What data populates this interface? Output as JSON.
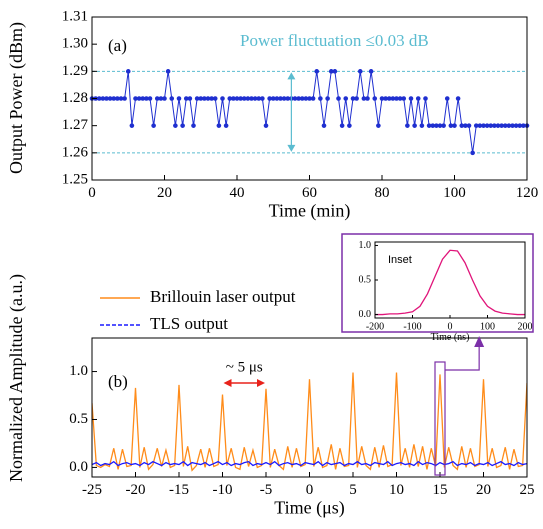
{
  "chart_data": [
    {
      "type": "line",
      "panel_label": "(a)",
      "annotation": "Power fluctuation ≤0.03 dB",
      "x_label": "Time (min)",
      "y_label": "Output Power (dBm)",
      "xlim": [
        0,
        120
      ],
      "xticks": [
        0,
        20,
        40,
        60,
        80,
        100,
        120
      ],
      "ylim": [
        1.25,
        1.31
      ],
      "yticks": [
        1.25,
        1.26,
        1.27,
        1.28,
        1.29,
        {
          "value": 1.3,
          "label": "1.30"
        },
        1.31
      ],
      "ref_lines": [
        1.29,
        1.26
      ],
      "ref_color": "#5bbcd0",
      "markers": true,
      "x": [
        0,
        1,
        2,
        3,
        4,
        5,
        6,
        7,
        8,
        9,
        10,
        11,
        12,
        13,
        14,
        15,
        16,
        17,
        18,
        19,
        20,
        21,
        22,
        23,
        24,
        25,
        26,
        27,
        28,
        29,
        30,
        31,
        32,
        33,
        34,
        35,
        36,
        37,
        38,
        39,
        40,
        41,
        42,
        43,
        44,
        45,
        46,
        47,
        48,
        49,
        50,
        51,
        52,
        53,
        54,
        55,
        56,
        57,
        58,
        59,
        60,
        61,
        62,
        63,
        64,
        65,
        66,
        67,
        68,
        69,
        70,
        71,
        72,
        73,
        74,
        75,
        76,
        77,
        78,
        79,
        80,
        81,
        82,
        83,
        84,
        85,
        86,
        87,
        88,
        89,
        90,
        91,
        92,
        93,
        94,
        95,
        96,
        97,
        98,
        99,
        100,
        101,
        102,
        103,
        104,
        105,
        106,
        107,
        108,
        109,
        110,
        111,
        112,
        113,
        114,
        115,
        116,
        117,
        118,
        119,
        120
      ],
      "series": [
        {
          "color": "#1f2fd0",
          "values": [
            1.28,
            1.28,
            1.28,
            1.28,
            1.28,
            1.28,
            1.28,
            1.28,
            1.28,
            1.28,
            1.29,
            1.27,
            1.28,
            1.28,
            1.28,
            1.28,
            1.28,
            1.27,
            1.28,
            1.28,
            1.28,
            1.29,
            1.28,
            1.27,
            1.28,
            1.27,
            1.28,
            1.28,
            1.27,
            1.28,
            1.28,
            1.28,
            1.28,
            1.28,
            1.28,
            1.27,
            1.28,
            1.27,
            1.28,
            1.28,
            1.28,
            1.28,
            1.28,
            1.28,
            1.28,
            1.28,
            1.28,
            1.28,
            1.27,
            1.28,
            1.28,
            1.28,
            1.28,
            1.28,
            1.28,
            1.28,
            1.28,
            1.28,
            1.28,
            1.28,
            1.28,
            1.28,
            1.29,
            1.28,
            1.27,
            1.28,
            1.29,
            1.29,
            1.28,
            1.27,
            1.28,
            1.27,
            1.28,
            1.28,
            1.29,
            1.28,
            1.28,
            1.29,
            1.28,
            1.27,
            1.28,
            1.28,
            1.28,
            1.28,
            1.28,
            1.28,
            1.28,
            1.27,
            1.28,
            1.27,
            1.28,
            1.27,
            1.28,
            1.27,
            1.27,
            1.27,
            1.27,
            1.27,
            1.28,
            1.27,
            1.27,
            1.28,
            1.27,
            1.27,
            1.27,
            1.26,
            1.27,
            1.27,
            1.27,
            1.27,
            1.27,
            1.27,
            1.27,
            1.27,
            1.27,
            1.27,
            1.27,
            1.27,
            1.27,
            1.27,
            1.27
          ]
        }
      ]
    },
    {
      "type": "line",
      "panel_label": "(b)",
      "annotation": "~ 5 μs",
      "x_label": "Time (μs)",
      "y_label": "Normalized Amplitude (a.u.)",
      "xlim": [
        -25,
        25
      ],
      "xticks": [
        -25,
        -20,
        -15,
        -10,
        -5,
        0,
        5,
        10,
        15,
        20,
        25
      ],
      "ylim": [
        -0.1,
        1.35
      ],
      "yticks": [
        {
          "value": 0,
          "label": "0.0"
        },
        0.5,
        {
          "value": 1,
          "label": "1.0"
        }
      ],
      "markers": false,
      "x": [
        -25,
        -24.5,
        -24,
        -23.5,
        -23,
        -22.5,
        -22,
        -21.5,
        -21,
        -20.5,
        -20,
        -19.5,
        -19,
        -18.5,
        -18,
        -17.5,
        -17,
        -16.5,
        -16,
        -15.5,
        -15,
        -14.5,
        -14,
        -13.5,
        -13,
        -12.5,
        -12,
        -11.5,
        -11,
        -10.5,
        -10,
        -9.5,
        -9,
        -8.5,
        -8,
        -7.5,
        -7,
        -6.5,
        -6,
        -5.5,
        -5,
        -4.5,
        -4,
        -3.5,
        -3,
        -2.5,
        -2,
        -1.5,
        -1,
        -0.5,
        0,
        0.5,
        1,
        1.5,
        2,
        2.5,
        3,
        3.5,
        4,
        4.5,
        5,
        5.5,
        6,
        6.5,
        7,
        7.5,
        8,
        8.5,
        9,
        9.5,
        10,
        10.5,
        11,
        11.5,
        12,
        12.5,
        13,
        13.5,
        14,
        14.5,
        15,
        15.5,
        16,
        16.5,
        17,
        17.5,
        18,
        18.5,
        19,
        19.5,
        20,
        20.5,
        21,
        21.5,
        22,
        22.5,
        23,
        23.5,
        24,
        24.5,
        25
      ],
      "series": [
        {
          "name": "Brillouin laser output",
          "color": "#ff8c1a",
          "values": [
            0.67,
            0.02,
            0,
            0.03,
            0.01,
            0.2,
            -0.02,
            0.19,
            0.01,
            0.02,
            0.83,
            0,
            0.21,
            -0.02,
            0.03,
            0.2,
            0.01,
            0.18,
            0,
            0.02,
            0.86,
            0.01,
            0.22,
            -0.03,
            0.02,
            0.19,
            0,
            0.2,
            0.01,
            0.03,
            0.76,
            0.02,
            0.2,
            0,
            -0.02,
            0.21,
            0.01,
            0.18,
            0,
            0.02,
            0.82,
            0,
            0.19,
            0.02,
            -0.02,
            0.22,
            0,
            0.2,
            0.01,
            0.03,
            0.92,
            0.01,
            0.21,
            0,
            0.02,
            0.24,
            -0.02,
            0.2,
            0.01,
            0.02,
            0.99,
            0,
            0.22,
            0.02,
            -0.02,
            0.21,
            0,
            0.23,
            0.01,
            0.03,
            0.99,
            0.02,
            0.2,
            0,
            0.24,
            0.01,
            0.22,
            -0.02,
            0.2,
            0.01,
            0.97,
            0,
            0.21,
            0.02,
            -0.02,
            0.22,
            0,
            0.2,
            0.01,
            0.03,
            0.92,
            0.01,
            0.2,
            0,
            0.02,
            0.21,
            -0.02,
            0.19,
            0.01,
            0.02,
            0.88
          ]
        },
        {
          "name": "TLS output",
          "color": "#1a1aff",
          "values": [
            0.03,
            0.05,
            0.02,
            0.04,
            0.03,
            0.06,
            0.02,
            0.04,
            0.05,
            0.03,
            0.04,
            0.02,
            0.05,
            0.03,
            0.06,
            0.04,
            0.02,
            0.05,
            0.03,
            0.04,
            0.03,
            0.06,
            0.02,
            0.05,
            0.04,
            0.03,
            0.05,
            0.02,
            0.04,
            0.06,
            0.03,
            0.05,
            0.02,
            0.04,
            0.03,
            0.05,
            0.06,
            0.02,
            0.04,
            0.03,
            0.05,
            0.03,
            0.06,
            0.02,
            0.04,
            0.05,
            0.03,
            0.04,
            0.02,
            0.05,
            0.04,
            0.03,
            0.06,
            0.02,
            0.05,
            0.03,
            0.04,
            0.05,
            0.02,
            0.04,
            0.03,
            0.06,
            0.03,
            0.04,
            0.02,
            0.05,
            0.04,
            0.03,
            0.06,
            0.02,
            0.04,
            0.05,
            0.03,
            0.04,
            0.02,
            0.06,
            0.03,
            0.05,
            0.04,
            0.02,
            0.05,
            0.03,
            0.04,
            0.06,
            0.02,
            0.04,
            0.03,
            0.05,
            0.02,
            0.04,
            0.03,
            0.05,
            0.02,
            0.04,
            0.06,
            0.03,
            0.04,
            0.02,
            0.05,
            0.03,
            0.04
          ]
        }
      ]
    },
    {
      "type": "line",
      "panel_label": "Inset",
      "x_label": "Time (ns)",
      "xlim": [
        -200,
        200
      ],
      "xticks": [
        -200,
        -100,
        0,
        100,
        200
      ],
      "ylim": [
        -0.05,
        1.05
      ],
      "yticks": [
        {
          "value": 0,
          "label": "0.0"
        },
        0.5,
        {
          "value": 1,
          "label": "1.0"
        }
      ],
      "markers": false,
      "x": [
        -200,
        -180,
        -160,
        -140,
        -120,
        -100,
        -80,
        -60,
        -40,
        -20,
        0,
        20,
        40,
        60,
        80,
        100,
        120,
        140,
        160,
        180,
        200
      ],
      "series": [
        {
          "color": "#e0157a",
          "values": [
            0,
            0,
            0.01,
            0.01,
            0.02,
            0.04,
            0.12,
            0.3,
            0.55,
            0.8,
            0.93,
            0.92,
            0.75,
            0.5,
            0.27,
            0.12,
            0.05,
            0.02,
            0.01,
            0,
            0
          ]
        }
      ]
    }
  ]
}
